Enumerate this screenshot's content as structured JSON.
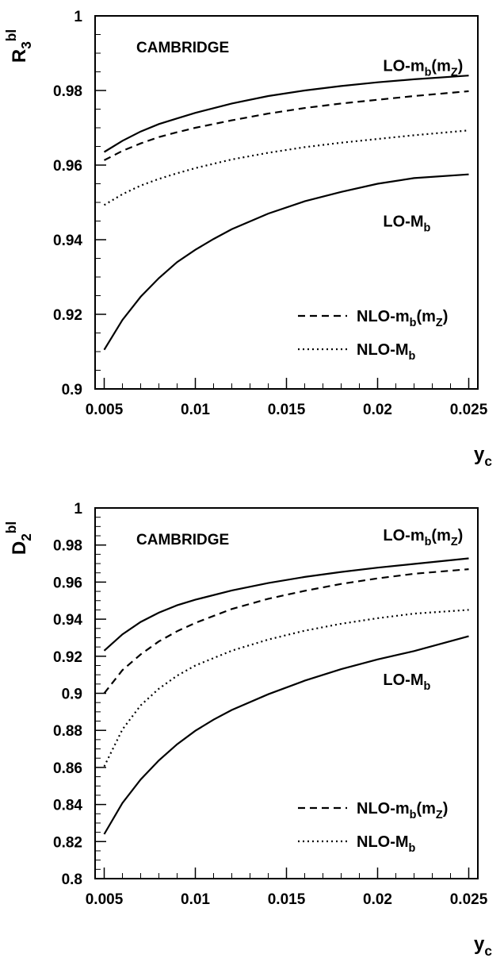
{
  "chart_data": [
    {
      "type": "line",
      "title": "",
      "ylabel_main": "R",
      "ylabel_sub": "3",
      "ylabel_sup": "bl",
      "xlabel_main": "y",
      "xlabel_sub": "c",
      "xlim": [
        0.0045,
        0.0255
      ],
      "ylim": [
        0.9,
        1.0
      ],
      "x_ticks": [
        0.005,
        0.01,
        0.015,
        0.02,
        0.025
      ],
      "x_tick_labels": [
        "0.005",
        "0.01",
        "0.015",
        "0.02",
        "0.025"
      ],
      "y_ticks": [
        0.9,
        0.92,
        0.94,
        0.96,
        0.98,
        1.0
      ],
      "y_tick_labels": [
        "0.9",
        "0.92",
        "0.94",
        "0.96",
        "0.98",
        "1"
      ],
      "y_minor_step": 0.005,
      "x_minor_step": 0.001,
      "annotation": "CAMBRIDGE",
      "legend": [
        {
          "label_main": "NLO-m",
          "label_sub": "b",
          "label_after": "(m",
          "label_sub2": "Z",
          "label_close": ")",
          "style": "dashed"
        },
        {
          "label_main": "NLO-M",
          "label_sub": "b",
          "label_after": "",
          "label_sub2": "",
          "label_close": "",
          "style": "dotted"
        }
      ],
      "curve_labels": [
        {
          "main": "LO-m",
          "sub": "b",
          "after": "(m",
          "sub2": "Z",
          "close": ")",
          "at": [
            0.0203,
            0.9852
          ]
        },
        {
          "main": "LO-M",
          "sub": "b",
          "after": "",
          "sub2": "",
          "close": "",
          "at": [
            0.0203,
            0.9435
          ]
        }
      ],
      "series": [
        {
          "style": "solid",
          "x": [
            0.005,
            0.006,
            0.007,
            0.008,
            0.009,
            0.01,
            0.012,
            0.014,
            0.016,
            0.018,
            0.02,
            0.022,
            0.025
          ],
          "y": [
            0.9635,
            0.9665,
            0.969,
            0.971,
            0.9725,
            0.974,
            0.9765,
            0.9785,
            0.98,
            0.9812,
            0.9822,
            0.983,
            0.984
          ]
        },
        {
          "style": "dashed",
          "x": [
            0.005,
            0.006,
            0.007,
            0.008,
            0.009,
            0.01,
            0.012,
            0.014,
            0.016,
            0.018,
            0.02,
            0.022,
            0.025
          ],
          "y": [
            0.9613,
            0.9638,
            0.9658,
            0.9675,
            0.9688,
            0.97,
            0.972,
            0.9738,
            0.9753,
            0.9765,
            0.9775,
            0.9785,
            0.9798
          ]
        },
        {
          "style": "dotted",
          "x": [
            0.005,
            0.006,
            0.007,
            0.008,
            0.009,
            0.01,
            0.012,
            0.014,
            0.016,
            0.018,
            0.02,
            0.022,
            0.025
          ],
          "y": [
            0.9493,
            0.9522,
            0.9545,
            0.9563,
            0.9578,
            0.9592,
            0.9615,
            0.9633,
            0.9648,
            0.966,
            0.967,
            0.968,
            0.9693
          ]
        },
        {
          "style": "solid",
          "x": [
            0.005,
            0.006,
            0.007,
            0.008,
            0.009,
            0.01,
            0.011,
            0.012,
            0.014,
            0.016,
            0.018,
            0.02,
            0.022,
            0.025
          ],
          "y": [
            0.9105,
            0.9185,
            0.9247,
            0.9297,
            0.934,
            0.9373,
            0.9402,
            0.9428,
            0.947,
            0.9503,
            0.9528,
            0.955,
            0.9565,
            0.9575
          ]
        }
      ]
    },
    {
      "type": "line",
      "title": "",
      "ylabel_main": "D",
      "ylabel_sub": "2",
      "ylabel_sup": "bl",
      "xlabel_main": "y",
      "xlabel_sub": "c",
      "xlim": [
        0.0045,
        0.0255
      ],
      "ylim": [
        0.8,
        1.0
      ],
      "x_ticks": [
        0.005,
        0.01,
        0.015,
        0.02,
        0.025
      ],
      "x_tick_labels": [
        "0.005",
        "0.01",
        "0.015",
        "0.02",
        "0.025"
      ],
      "y_ticks": [
        0.8,
        0.82,
        0.84,
        0.86,
        0.88,
        0.9,
        0.92,
        0.94,
        0.96,
        0.98,
        1.0
      ],
      "y_tick_labels": [
        "0.8",
        "0.82",
        "0.84",
        "0.86",
        "0.88",
        "0.9",
        "0.92",
        "0.94",
        "0.96",
        "0.98",
        "1"
      ],
      "y_minor_step": 0.005,
      "x_minor_step": 0.001,
      "annotation": "CAMBRIDGE",
      "legend": [
        {
          "label_main": "NLO-m",
          "label_sub": "b",
          "label_after": "(m",
          "label_sub2": "Z",
          "label_close": ")",
          "style": "dashed"
        },
        {
          "label_main": "NLO-M",
          "label_sub": "b",
          "label_after": "",
          "label_sub2": "",
          "label_close": "",
          "style": "dotted"
        }
      ],
      "curve_labels": [
        {
          "main": "LO-m",
          "sub": "b",
          "after": "(m",
          "sub2": "Z",
          "close": ")",
          "at": [
            0.0203,
            0.9825
          ]
        },
        {
          "main": "LO-M",
          "sub": "b",
          "after": "",
          "sub2": "",
          "close": "",
          "at": [
            0.0203,
            0.9045
          ]
        }
      ],
      "series": [
        {
          "style": "solid",
          "x": [
            0.005,
            0.006,
            0.007,
            0.008,
            0.009,
            0.01,
            0.012,
            0.014,
            0.016,
            0.018,
            0.02,
            0.022,
            0.025
          ],
          "y": [
            0.923,
            0.9318,
            0.9385,
            0.9435,
            0.9475,
            0.9505,
            0.9555,
            0.9595,
            0.9628,
            0.9655,
            0.9678,
            0.9698,
            0.9728
          ]
        },
        {
          "style": "dashed",
          "x": [
            0.005,
            0.006,
            0.007,
            0.008,
            0.009,
            0.01,
            0.012,
            0.014,
            0.016,
            0.018,
            0.02,
            0.022,
            0.025
          ],
          "y": [
            0.9,
            0.9125,
            0.921,
            0.928,
            0.9335,
            0.938,
            0.9455,
            0.951,
            0.9553,
            0.959,
            0.962,
            0.9645,
            0.967
          ]
        },
        {
          "style": "dotted",
          "x": [
            0.005,
            0.006,
            0.007,
            0.008,
            0.009,
            0.01,
            0.012,
            0.014,
            0.016,
            0.018,
            0.02,
            0.022,
            0.025
          ],
          "y": [
            0.8605,
            0.8805,
            0.8935,
            0.9025,
            0.9095,
            0.915,
            0.923,
            0.929,
            0.9338,
            0.9375,
            0.9405,
            0.943,
            0.945
          ]
        },
        {
          "style": "solid",
          "x": [
            0.005,
            0.006,
            0.007,
            0.008,
            0.009,
            0.01,
            0.011,
            0.012,
            0.014,
            0.016,
            0.018,
            0.02,
            0.022,
            0.025
          ],
          "y": [
            0.824,
            0.8408,
            0.8535,
            0.8638,
            0.8725,
            0.8798,
            0.8858,
            0.891,
            0.8995,
            0.9068,
            0.913,
            0.9183,
            0.9228,
            0.9308
          ]
        }
      ]
    }
  ]
}
